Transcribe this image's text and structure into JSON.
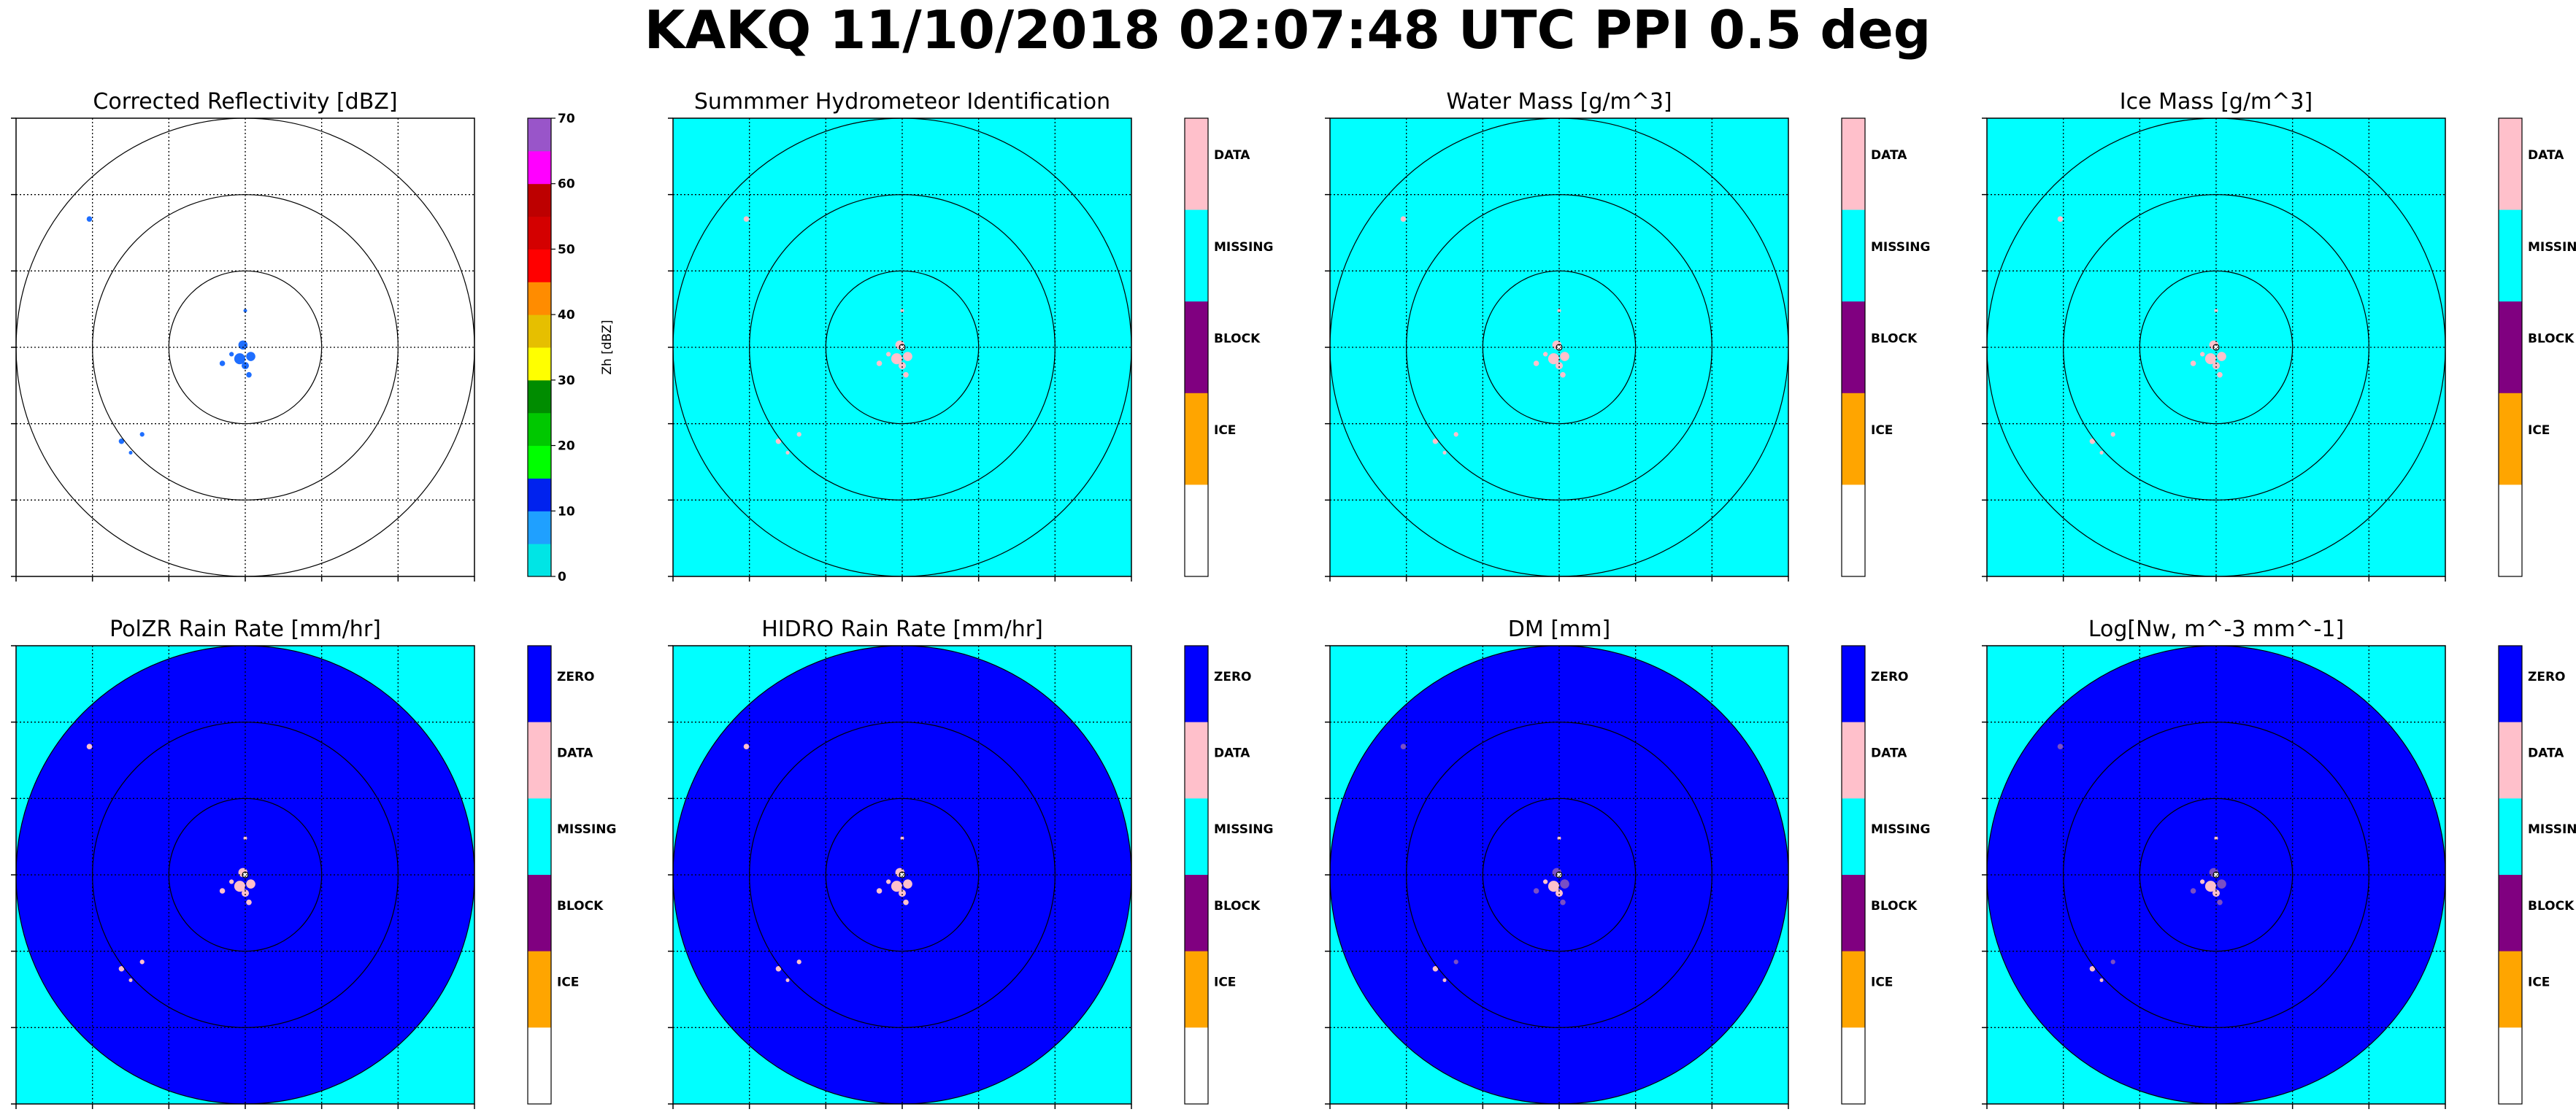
{
  "figure": {
    "title": "KAKQ 11/10/2018 02:07:48 UTC PPI 0.5 deg"
  },
  "colors": {
    "cyan": "#00ffff",
    "blue": "#0000ff",
    "pink": "#ffc0cb",
    "purple": "#800080",
    "orange": "#ffa500",
    "white": "#ffffff",
    "echo_blue": "#1e6eff"
  },
  "chart_data": [
    {
      "type": "heatmap",
      "title": "Corrected Reflectivity [dBZ]",
      "background": "white",
      "grid": true,
      "range_rings": 3,
      "colorbar": {
        "type": "continuous",
        "label": "Zh [dBZ]",
        "range": [
          0,
          70
        ],
        "ticks": [
          "0",
          "10",
          "20",
          "30",
          "40",
          "50",
          "60",
          "70"
        ],
        "colors": [
          "#00e5e5",
          "#1fa0ff",
          "#0022ee",
          "#00ff00",
          "#00c800",
          "#008c00",
          "#ffff00",
          "#e6bf00",
          "#ff8c00",
          "#ff0000",
          "#d40000",
          "#bd0000",
          "#ff00ff",
          "#9955c9"
        ]
      },
      "echoes": "sparse weak echoes (10-15 dBZ) near radar and to the west/southwest"
    },
    {
      "type": "heatmap",
      "title": "Summmer Hydrometeor Identification",
      "background": "cyan",
      "grid": true,
      "range_rings": 3,
      "colorbar": {
        "type": "categorical",
        "categories": [
          "DATA",
          "MISSING",
          "BLOCK",
          "ICE",
          ""
        ],
        "colors": [
          "#ffc0cb",
          "#00ffff",
          "#800080",
          "#ffa500",
          "#ffffff"
        ]
      }
    },
    {
      "type": "heatmap",
      "title": "Water Mass [g/m^3]",
      "background": "cyan",
      "grid": true,
      "range_rings": 3,
      "colorbar": {
        "type": "categorical",
        "categories": [
          "DATA",
          "MISSING",
          "BLOCK",
          "ICE",
          ""
        ],
        "colors": [
          "#ffc0cb",
          "#00ffff",
          "#800080",
          "#ffa500",
          "#ffffff"
        ]
      }
    },
    {
      "type": "heatmap",
      "title": "Ice Mass [g/m^3]",
      "background": "cyan",
      "grid": true,
      "range_rings": 3,
      "colorbar": {
        "type": "categorical",
        "categories": [
          "DATA",
          "MISSING",
          "BLOCK",
          "ICE",
          ""
        ],
        "colors": [
          "#ffc0cb",
          "#00ffff",
          "#800080",
          "#ffa500",
          "#ffffff"
        ]
      }
    },
    {
      "type": "heatmap",
      "title": "PolZR Rain Rate [mm/hr]",
      "background": "cyan",
      "disk": "blue",
      "grid": true,
      "range_rings": 3,
      "colorbar": {
        "type": "categorical",
        "categories": [
          "ZERO",
          "DATA",
          "MISSING",
          "BLOCK",
          "ICE",
          ""
        ],
        "colors": [
          "#0000ff",
          "#ffc0cb",
          "#00ffff",
          "#800080",
          "#ffa500",
          "#ffffff"
        ]
      }
    },
    {
      "type": "heatmap",
      "title": "HIDRO Rain Rate [mm/hr]",
      "background": "cyan",
      "disk": "blue",
      "grid": true,
      "range_rings": 3,
      "colorbar": {
        "type": "categorical",
        "categories": [
          "ZERO",
          "DATA",
          "MISSING",
          "BLOCK",
          "ICE",
          ""
        ],
        "colors": [
          "#0000ff",
          "#ffc0cb",
          "#00ffff",
          "#800080",
          "#ffa500",
          "#ffffff"
        ]
      }
    },
    {
      "type": "heatmap",
      "title": "DM [mm]",
      "background": "cyan",
      "disk": "blue",
      "grid": true,
      "range_rings": 3,
      "colorbar": {
        "type": "categorical",
        "categories": [
          "ZERO",
          "DATA",
          "MISSING",
          "BLOCK",
          "ICE",
          ""
        ],
        "colors": [
          "#0000ff",
          "#ffc0cb",
          "#00ffff",
          "#800080",
          "#ffa500",
          "#ffffff"
        ]
      }
    },
    {
      "type": "heatmap",
      "title": "Log[Nw, m^-3 mm^-1]",
      "background": "cyan",
      "disk": "blue",
      "grid": true,
      "range_rings": 3,
      "colorbar": {
        "type": "categorical",
        "categories": [
          "ZERO",
          "DATA",
          "MISSING",
          "BLOCK",
          "ICE",
          ""
        ],
        "colors": [
          "#0000ff",
          "#ffc0cb",
          "#00ffff",
          "#800080",
          "#ffa500",
          "#ffffff"
        ]
      }
    }
  ]
}
